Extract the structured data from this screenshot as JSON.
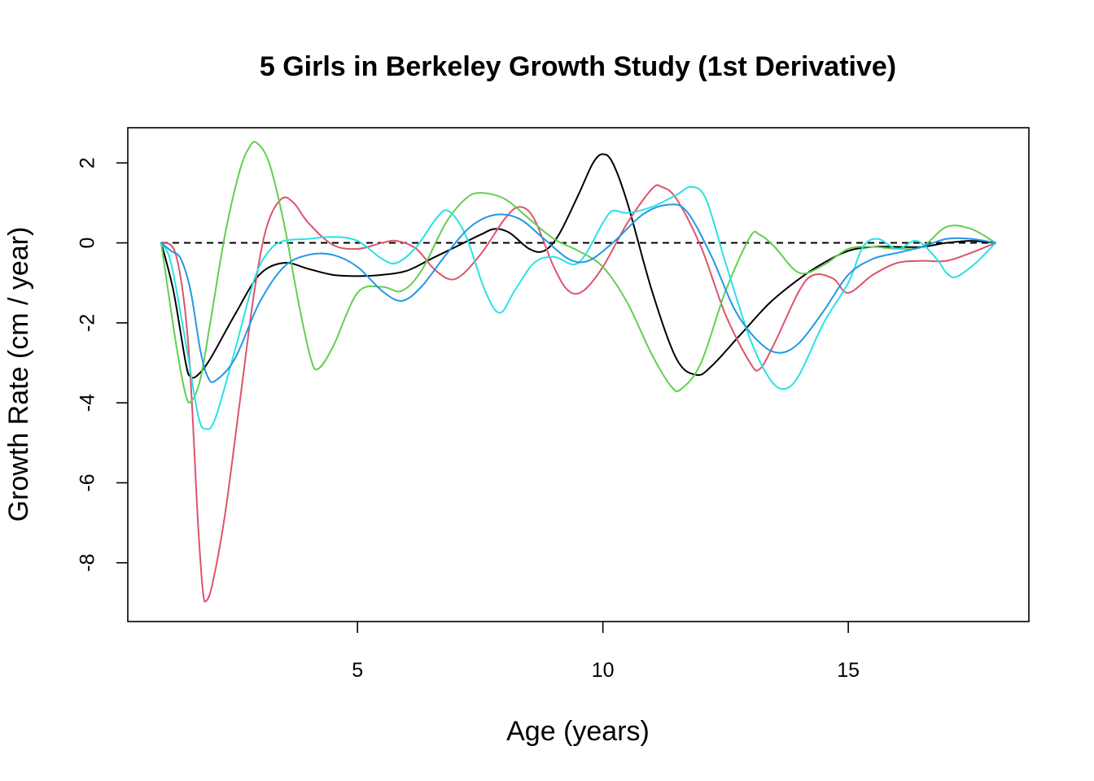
{
  "chart_data": {
    "type": "line",
    "title": "5 Girls in Berkeley Growth Study (1st Derivative)",
    "xlabel": "Age (years)",
    "ylabel": "Growth Rate (cm / year)",
    "xlim": [
      1,
      18
    ],
    "ylim": [
      -9,
      2.8
    ],
    "x_ticks": [
      5,
      10,
      15
    ],
    "y_ticks": [
      2,
      0,
      -2,
      -4,
      -6,
      -8
    ],
    "x_tick_labels": [
      "5",
      "10",
      "15"
    ],
    "y_tick_labels": [
      "2",
      "0",
      "-2",
      "-4",
      "-6",
      "-8"
    ],
    "grid": false,
    "legend": "none",
    "reference_line": {
      "y": 0,
      "style": "dashed"
    },
    "series": [
      {
        "color": "#000000",
        "points": [
          [
            1,
            0
          ],
          [
            1.25,
            -1.2
          ],
          [
            1.5,
            -3.0
          ],
          [
            1.6,
            -3.35
          ],
          [
            1.75,
            -3.3
          ],
          [
            2,
            -2.9
          ],
          [
            2.5,
            -1.8
          ],
          [
            3,
            -0.8
          ],
          [
            3.5,
            -0.5
          ],
          [
            4,
            -0.65
          ],
          [
            4.5,
            -0.8
          ],
          [
            5,
            -0.83
          ],
          [
            5.5,
            -0.8
          ],
          [
            6,
            -0.7
          ],
          [
            6.5,
            -0.4
          ],
          [
            7,
            -0.1
          ],
          [
            7.5,
            0.2
          ],
          [
            7.8,
            0.35
          ],
          [
            8.1,
            0.25
          ],
          [
            8.5,
            -0.15
          ],
          [
            8.8,
            -0.2
          ],
          [
            9.1,
            0.2
          ],
          [
            9.5,
            1.2
          ],
          [
            9.8,
            2.0
          ],
          [
            10,
            2.22
          ],
          [
            10.2,
            2.0
          ],
          [
            10.5,
            1.0
          ],
          [
            11,
            -1.2
          ],
          [
            11.5,
            -2.9
          ],
          [
            11.9,
            -3.3
          ],
          [
            12.2,
            -3.1
          ],
          [
            12.8,
            -2.3
          ],
          [
            13.4,
            -1.5
          ],
          [
            14,
            -0.9
          ],
          [
            14.5,
            -0.5
          ],
          [
            15,
            -0.2
          ],
          [
            15.5,
            -0.1
          ],
          [
            16,
            -0.1
          ],
          [
            16.5,
            -0.1
          ],
          [
            17,
            0
          ],
          [
            17.5,
            0.05
          ],
          [
            18,
            0
          ]
        ]
      },
      {
        "color": "#DF536B",
        "points": [
          [
            1,
            0
          ],
          [
            1.3,
            -0.3
          ],
          [
            1.55,
            -2.5
          ],
          [
            1.75,
            -7.0
          ],
          [
            1.85,
            -8.7
          ],
          [
            1.92,
            -8.95
          ],
          [
            2.05,
            -8.5
          ],
          [
            2.3,
            -6.8
          ],
          [
            2.6,
            -4.0
          ],
          [
            2.9,
            -1.2
          ],
          [
            3.15,
            0.4
          ],
          [
            3.45,
            1.1
          ],
          [
            3.7,
            1.0
          ],
          [
            4,
            0.5
          ],
          [
            4.5,
            -0.05
          ],
          [
            5,
            -0.15
          ],
          [
            5.5,
            0
          ],
          [
            5.8,
            0.05
          ],
          [
            6.2,
            -0.15
          ],
          [
            6.6,
            -0.7
          ],
          [
            7,
            -0.9
          ],
          [
            7.5,
            -0.3
          ],
          [
            8,
            0.6
          ],
          [
            8.3,
            0.9
          ],
          [
            8.6,
            0.6
          ],
          [
            9,
            -0.6
          ],
          [
            9.3,
            -1.2
          ],
          [
            9.6,
            -1.2
          ],
          [
            10,
            -0.6
          ],
          [
            10.5,
            0.5
          ],
          [
            11,
            1.35
          ],
          [
            11.2,
            1.4
          ],
          [
            11.5,
            1.1
          ],
          [
            12,
            -0.1
          ],
          [
            12.5,
            -1.8
          ],
          [
            13,
            -3.0
          ],
          [
            13.2,
            -3.15
          ],
          [
            13.5,
            -2.5
          ],
          [
            14,
            -1.2
          ],
          [
            14.3,
            -0.8
          ],
          [
            14.7,
            -0.9
          ],
          [
            15,
            -1.25
          ],
          [
            15.5,
            -0.8
          ],
          [
            16,
            -0.5
          ],
          [
            16.5,
            -0.45
          ],
          [
            17,
            -0.45
          ],
          [
            17.5,
            -0.25
          ],
          [
            18,
            0
          ]
        ]
      },
      {
        "color": "#61D04F",
        "points": [
          [
            1,
            0
          ],
          [
            1.3,
            -2.5
          ],
          [
            1.5,
            -3.8
          ],
          [
            1.62,
            -3.95
          ],
          [
            1.8,
            -3.4
          ],
          [
            2,
            -2.0
          ],
          [
            2.3,
            0.2
          ],
          [
            2.6,
            1.8
          ],
          [
            2.8,
            2.4
          ],
          [
            2.95,
            2.5
          ],
          [
            3.2,
            2.0
          ],
          [
            3.5,
            0.5
          ],
          [
            3.8,
            -1.5
          ],
          [
            4.05,
            -2.9
          ],
          [
            4.2,
            -3.15
          ],
          [
            4.5,
            -2.6
          ],
          [
            5,
            -1.25
          ],
          [
            5.5,
            -1.1
          ],
          [
            5.9,
            -1.2
          ],
          [
            6.3,
            -0.7
          ],
          [
            6.8,
            0.5
          ],
          [
            7.2,
            1.1
          ],
          [
            7.5,
            1.25
          ],
          [
            8,
            1.1
          ],
          [
            8.5,
            0.6
          ],
          [
            9,
            0.1
          ],
          [
            9.5,
            -0.2
          ],
          [
            10,
            -0.6
          ],
          [
            10.5,
            -1.5
          ],
          [
            11,
            -2.8
          ],
          [
            11.4,
            -3.6
          ],
          [
            11.6,
            -3.65
          ],
          [
            12,
            -3.0
          ],
          [
            12.5,
            -1.2
          ],
          [
            13,
            0.15
          ],
          [
            13.2,
            0.2
          ],
          [
            13.5,
            -0.1
          ],
          [
            14,
            -0.75
          ],
          [
            14.5,
            -0.55
          ],
          [
            15,
            -0.15
          ],
          [
            15.5,
            -0.1
          ],
          [
            16,
            -0.15
          ],
          [
            16.5,
            -0.1
          ],
          [
            17,
            0.4
          ],
          [
            17.5,
            0.35
          ],
          [
            18,
            0
          ]
        ]
      },
      {
        "color": "#28E2E5",
        "points": [
          [
            1,
            0
          ],
          [
            1.2,
            -0.5
          ],
          [
            1.5,
            -2.5
          ],
          [
            1.75,
            -4.3
          ],
          [
            1.9,
            -4.65
          ],
          [
            2.1,
            -4.4
          ],
          [
            2.5,
            -2.7
          ],
          [
            2.9,
            -0.9
          ],
          [
            3.2,
            -0.2
          ],
          [
            3.5,
            0.05
          ],
          [
            4,
            0.1
          ],
          [
            4.5,
            0.15
          ],
          [
            5,
            0.05
          ],
          [
            5.5,
            -0.4
          ],
          [
            5.8,
            -0.5
          ],
          [
            6.2,
            -0.1
          ],
          [
            6.6,
            0.6
          ],
          [
            6.85,
            0.8
          ],
          [
            7.2,
            0.2
          ],
          [
            7.6,
            -1.2
          ],
          [
            7.9,
            -1.75
          ],
          [
            8.2,
            -1.2
          ],
          [
            8.6,
            -0.5
          ],
          [
            9,
            -0.35
          ],
          [
            9.5,
            -0.5
          ],
          [
            10,
            0.5
          ],
          [
            10.2,
            0.8
          ],
          [
            10.5,
            0.75
          ],
          [
            11,
            0.9
          ],
          [
            11.5,
            1.2
          ],
          [
            11.8,
            1.4
          ],
          [
            12.1,
            1.1
          ],
          [
            12.5,
            -0.5
          ],
          [
            13,
            -2.4
          ],
          [
            13.4,
            -3.4
          ],
          [
            13.7,
            -3.65
          ],
          [
            14,
            -3.3
          ],
          [
            14.5,
            -2.0
          ],
          [
            15,
            -1.0
          ],
          [
            15.3,
            -0.1
          ],
          [
            15.6,
            0.1
          ],
          [
            16,
            -0.15
          ],
          [
            16.4,
            0.05
          ],
          [
            16.8,
            -0.4
          ],
          [
            17,
            -0.75
          ],
          [
            17.2,
            -0.85
          ],
          [
            17.6,
            -0.5
          ],
          [
            18,
            0
          ]
        ]
      },
      {
        "color": "#2297E6",
        "points": [
          [
            1,
            0
          ],
          [
            1.2,
            -0.2
          ],
          [
            1.4,
            -0.4
          ],
          [
            1.6,
            -1.2
          ],
          [
            1.8,
            -2.7
          ],
          [
            1.95,
            -3.35
          ],
          [
            2.1,
            -3.45
          ],
          [
            2.5,
            -2.9
          ],
          [
            3,
            -1.5
          ],
          [
            3.5,
            -0.6
          ],
          [
            4,
            -0.3
          ],
          [
            4.5,
            -0.3
          ],
          [
            5,
            -0.6
          ],
          [
            5.5,
            -1.2
          ],
          [
            5.9,
            -1.45
          ],
          [
            6.3,
            -1.1
          ],
          [
            6.8,
            -0.3
          ],
          [
            7.3,
            0.4
          ],
          [
            7.8,
            0.7
          ],
          [
            8.3,
            0.6
          ],
          [
            8.8,
            0.1
          ],
          [
            9.3,
            -0.4
          ],
          [
            9.7,
            -0.45
          ],
          [
            10.2,
            0
          ],
          [
            10.8,
            0.7
          ],
          [
            11.3,
            0.95
          ],
          [
            11.7,
            0.8
          ],
          [
            12.2,
            -0.3
          ],
          [
            12.7,
            -1.7
          ],
          [
            13.2,
            -2.5
          ],
          [
            13.6,
            -2.75
          ],
          [
            14,
            -2.5
          ],
          [
            14.5,
            -1.7
          ],
          [
            15,
            -0.8
          ],
          [
            15.5,
            -0.4
          ],
          [
            16,
            -0.25
          ],
          [
            16.5,
            -0.1
          ],
          [
            17,
            0.1
          ],
          [
            17.5,
            0.1
          ],
          [
            18,
            0
          ]
        ]
      }
    ]
  }
}
